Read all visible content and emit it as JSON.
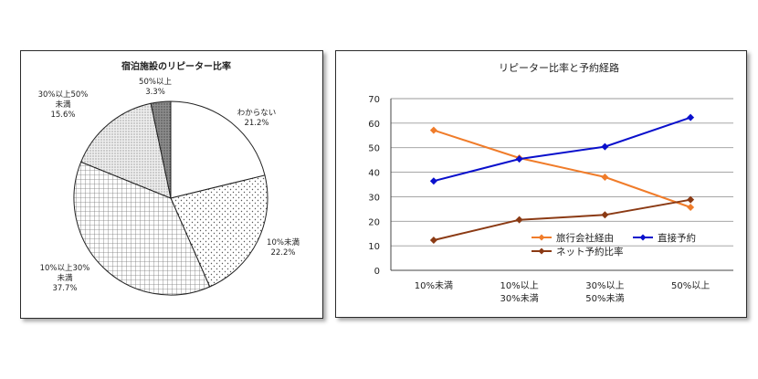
{
  "chart_data": [
    {
      "type": "pie",
      "title": "宿泊施設のリピーター比率",
      "slices": [
        {
          "label": "わからない",
          "value": 21.2,
          "value_text": "21.2%",
          "pattern": "blank"
        },
        {
          "label": "10%未満",
          "value": 22.2,
          "value_text": "22.2%",
          "pattern": "dots"
        },
        {
          "label": "10%以上30%未満",
          "value": 37.7,
          "value_text": "37.7%",
          "pattern": "grid"
        },
        {
          "label": "30%以上50%未満",
          "value": 15.6,
          "value_text": "15.6%",
          "pattern": "fine-dots"
        },
        {
          "label": "50%以上",
          "value": 3.3,
          "value_text": "3.3%",
          "pattern": "dark-dots"
        }
      ],
      "label_lines": [
        [
          "わからない",
          "21.2%"
        ],
        [
          "10%未満",
          "22.2%"
        ],
        [
          "10%以上30%",
          "未満",
          "37.7%"
        ],
        [
          "30%以上50%",
          "未満",
          "15.6%"
        ],
        [
          "50%以上",
          "3.3%"
        ]
      ]
    },
    {
      "type": "line",
      "title": "リピーター比率と予約経路",
      "categories": [
        [
          "10%未満"
        ],
        [
          "10%以上",
          "30%未満"
        ],
        [
          "30%以上",
          "50%未満"
        ],
        [
          "50%以上"
        ]
      ],
      "ylim": [
        0,
        70
      ],
      "yticks": [
        0,
        10,
        20,
        30,
        40,
        50,
        60,
        70
      ],
      "grid": true,
      "legend_position": "bottom-right inside plot",
      "series": [
        {
          "name": "旅行会社経由",
          "values": [
            57.1,
            45.8,
            38.0,
            25.7
          ],
          "color": "#f07c2a"
        },
        {
          "name": "直接予約",
          "values": [
            36.4,
            45.4,
            50.4,
            62.3
          ],
          "color": "#0a10cc"
        },
        {
          "name": "ネット予約比率",
          "values": [
            12.3,
            20.6,
            22.6,
            28.8
          ],
          "color": "#8b3a14"
        }
      ]
    }
  ]
}
